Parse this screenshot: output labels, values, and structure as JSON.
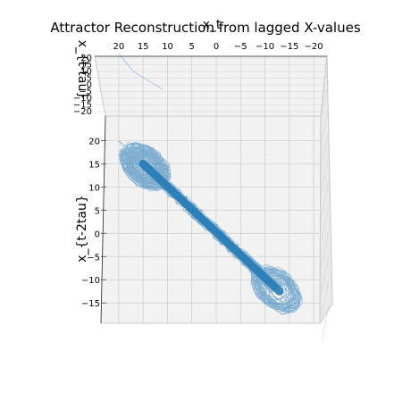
{
  "chart_data": {
    "type": "line",
    "title": "Attractor Reconstruction from lagged X-values",
    "xlabel": "x_t",
    "ylabel": "x_{t-tau}",
    "zlabel": "x_{t-2tau}",
    "x_ticks": [
      "20",
      "15",
      "10",
      "5",
      "0",
      "−5",
      "−10",
      "−15",
      "−20"
    ],
    "y_ticks": [
      "20",
      "15",
      "10",
      "5",
      "0",
      "−5",
      "−10",
      "−15",
      "−20"
    ],
    "z_ticks": [
      "20",
      "15",
      "10",
      "5",
      "0",
      "−5",
      "−10",
      "−15"
    ],
    "xlim": [
      -22,
      22
    ],
    "ylim": [
      -22,
      22
    ],
    "zlim": [
      -19,
      22
    ],
    "grid": true,
    "series_color": "#1f77b4",
    "pane_color": "#f2f2f2"
  }
}
